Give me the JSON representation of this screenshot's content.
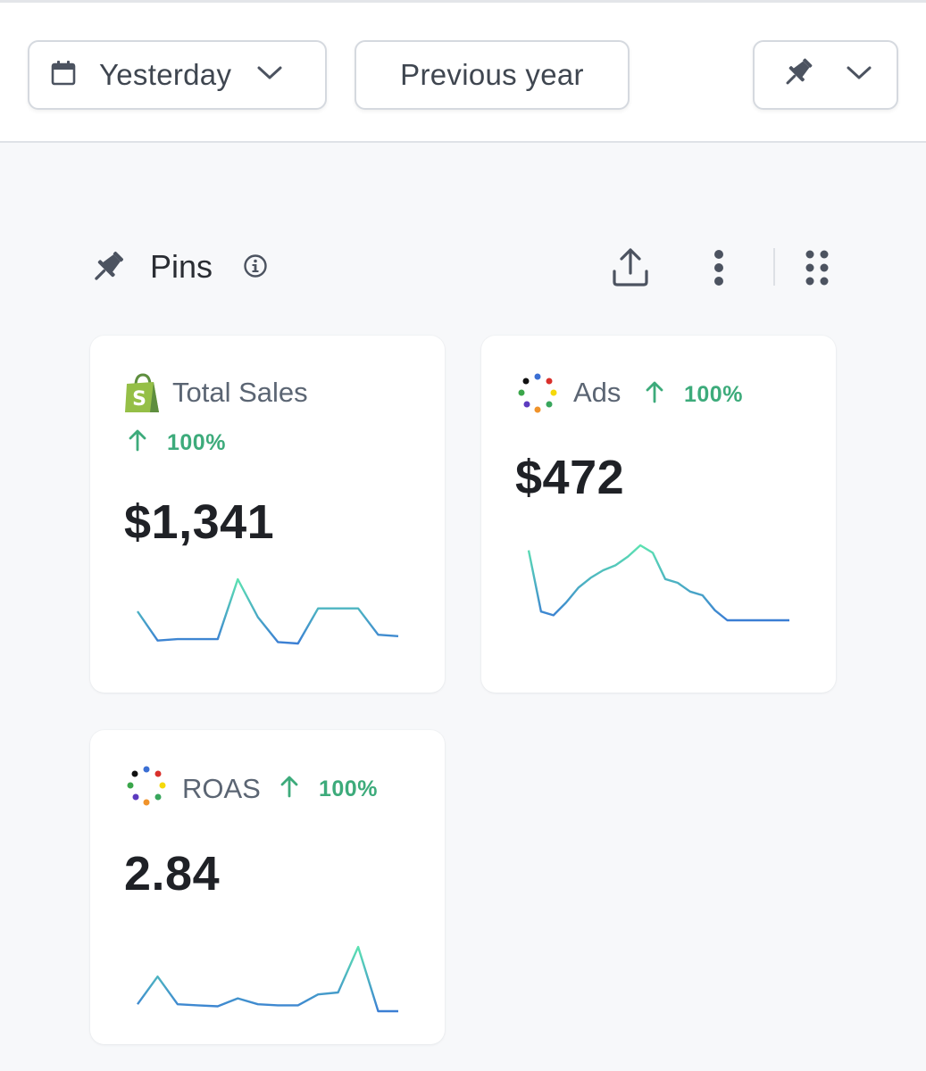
{
  "toolbar": {
    "date_label": "Yesterday",
    "compare_label": "Previous year"
  },
  "pins": {
    "title": "Pins"
  },
  "cards": [
    {
      "name": "Total Sales",
      "change": "100%",
      "value": "$1,341",
      "trend": [
        3,
        1,
        1.1,
        1.1,
        1.1,
        5.2,
        2.6,
        0.9,
        0.8,
        3.2,
        3.2,
        3.2,
        1.4,
        1.3
      ]
    },
    {
      "name": "Ads",
      "change": "100%",
      "value": "$472",
      "trend": [
        7.2,
        2.3,
        2,
        3,
        4.2,
        5,
        5.6,
        6,
        6.7,
        7.6,
        7,
        4.9,
        4.6,
        3.9,
        3.6,
        2.4,
        1.6,
        1.6,
        1.6,
        1.6,
        1.6,
        1.6
      ]
    },
    {
      "name": "ROAS",
      "change": "100%",
      "value": "2.84",
      "trend": [
        0.4,
        1.8,
        0.4,
        0.35,
        0.3,
        0.7,
        0.4,
        0.35,
        0.35,
        0.9,
        1,
        3.3,
        0.05,
        0.05
      ]
    }
  ],
  "colors": {
    "positive": "#3dab7b",
    "spark_start": "#3a7bd5",
    "spark_peak": "#5ee6b0",
    "shopify_green": "#95bf47"
  }
}
